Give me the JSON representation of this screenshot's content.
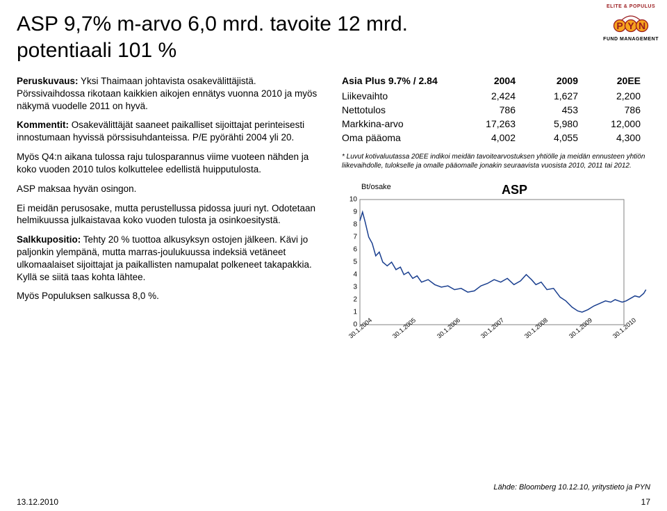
{
  "logo": {
    "topText": "ELITE & POPULUS",
    "letters": "PYN",
    "bottomText": "FUND MANAGEMENT",
    "colors": {
      "circleFill": "#f6a31d",
      "circleStroke": "#9a1b1e",
      "arc": "#9a1b1e",
      "text": "#9a1b1e"
    }
  },
  "title": "ASP 9,7%  m-arvo 6,0 mrd.  tavoite 12 mrd.",
  "subtitle": "potentiaali 101 %",
  "left": {
    "p1_label": "Peruskuvaus:",
    "p1_text": " Yksi Thaimaan johtavista osakevälittäjistä. Pörssivaihdossa rikotaan kaikkien aikojen ennätys vuonna 2010 ja myös näkymä vuodelle 2011 on hyvä.",
    "p2_label": "Kommentit:",
    "p2a": " Osakevälittäjät saaneet paikalliset sijoittajat perinteisesti innostumaan hyvissä pörssisuhdanteissa. P/E pyörähti 2004 yli 20.",
    "p2b": "Myös Q4:n aikana tulossa raju tulosparannus viime vuoteen nähden ja koko vuoden 2010 tulos kolkuttelee edellistä huipputulosta.",
    "p2c": "ASP maksaa hyvän osingon.",
    "p2d": "Ei meidän perusosake, mutta perustellussa pidossa juuri nyt. Odotetaan helmikuussa julkaistavaa koko vuoden tulosta ja osinkoesitystä.",
    "p3_label": "Salkkupositio:",
    "p3a": " Tehty 20 % tuottoa alkusyksyn ostojen jälkeen. Kävi jo paljonkin ylempänä, mutta marras-joulukuussa indeksiä vetäneet ulkomaalaiset sijoittajat ja paikallisten namupalat polkeneet takapakkia. Kyllä se siitä taas kohta lähtee.",
    "p3b": "Myös Populuksen salkussa 8,0 %."
  },
  "table": {
    "header": [
      "Asia Plus 9.7% / 2.84",
      "2004",
      "2009",
      "20EE"
    ],
    "rows": [
      [
        "Liikevaihto",
        "2,424",
        "1,627",
        "2,200"
      ],
      [
        "Nettotulos",
        "786",
        "453",
        "786"
      ],
      [
        "Markkina-arvo",
        "17,263",
        "5,980",
        "12,000"
      ],
      [
        "Oma pääoma",
        "4,002",
        "4,055",
        "4,300"
      ]
    ]
  },
  "footnote": "* Luvut kotivaluutassa 20EE indikoi meidän tavoitearvostuksen yhtiölle ja meidän ennusteen yhtiön liikevaihdolle, tulokselle ja omalle pääomalle jonakin seuraavista vuosista 2010, 2011 tai 2012.",
  "chart": {
    "type": "line",
    "title": "ASP",
    "ylabel": "Bt/osake",
    "ylim": [
      0,
      10
    ],
    "yticks": [
      0,
      1,
      2,
      3,
      4,
      5,
      6,
      7,
      8,
      9,
      10
    ],
    "xlabels": [
      "30.1.2004",
      "30.1.2005",
      "30.1.2006",
      "30.1.2007",
      "30.1.2008",
      "30.1.2009",
      "30.1.2010"
    ],
    "xlim": [
      0,
      6
    ],
    "line_color": "#1a3f8f",
    "line_width": 1.5,
    "border_color": "#808080",
    "background_color": "#ffffff",
    "series": [
      [
        0.0,
        8.3
      ],
      [
        0.06,
        9.0
      ],
      [
        0.12,
        8.2
      ],
      [
        0.2,
        7.0
      ],
      [
        0.28,
        6.5
      ],
      [
        0.36,
        5.5
      ],
      [
        0.44,
        5.8
      ],
      [
        0.52,
        5.0
      ],
      [
        0.62,
        4.7
      ],
      [
        0.72,
        5.0
      ],
      [
        0.82,
        4.4
      ],
      [
        0.92,
        4.6
      ],
      [
        1.0,
        4.0
      ],
      [
        1.1,
        4.2
      ],
      [
        1.2,
        3.7
      ],
      [
        1.3,
        3.9
      ],
      [
        1.4,
        3.4
      ],
      [
        1.55,
        3.6
      ],
      [
        1.7,
        3.2
      ],
      [
        1.85,
        3.0
      ],
      [
        2.0,
        3.1
      ],
      [
        2.15,
        2.8
      ],
      [
        2.3,
        2.9
      ],
      [
        2.45,
        2.6
      ],
      [
        2.6,
        2.7
      ],
      [
        2.75,
        3.1
      ],
      [
        2.9,
        3.3
      ],
      [
        3.05,
        3.6
      ],
      [
        3.2,
        3.4
      ],
      [
        3.35,
        3.7
      ],
      [
        3.5,
        3.2
      ],
      [
        3.65,
        3.5
      ],
      [
        3.78,
        4.0
      ],
      [
        3.9,
        3.6
      ],
      [
        4.0,
        3.2
      ],
      [
        4.12,
        3.4
      ],
      [
        4.25,
        2.8
      ],
      [
        4.4,
        2.9
      ],
      [
        4.55,
        2.2
      ],
      [
        4.68,
        1.9
      ],
      [
        4.82,
        1.4
      ],
      [
        4.95,
        1.1
      ],
      [
        5.05,
        1.0
      ],
      [
        5.18,
        1.2
      ],
      [
        5.32,
        1.5
      ],
      [
        5.45,
        1.7
      ],
      [
        5.58,
        1.9
      ],
      [
        5.7,
        1.8
      ],
      [
        5.8,
        2.0
      ],
      [
        5.88,
        1.9
      ],
      [
        5.96,
        1.8
      ],
      [
        6.05,
        1.9
      ],
      [
        6.15,
        2.1
      ],
      [
        6.25,
        2.3
      ],
      [
        6.35,
        2.2
      ],
      [
        6.45,
        2.5
      ],
      [
        6.5,
        2.8
      ]
    ]
  },
  "source": "Lähde: Bloomberg 10.12.10, yritystieto ja PYN",
  "footer": {
    "date": "13.12.2010",
    "page": "17"
  }
}
